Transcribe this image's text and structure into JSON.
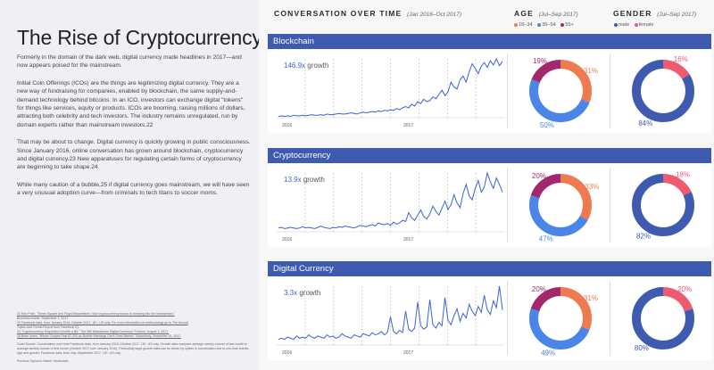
{
  "left": {
    "title": "The Rise of Cryptocurrency",
    "paragraphs": [
      "Formerly in the domain of the dark web, digital currency made headlines in 2017—and now appears poised for the mainstream.",
      "Initial Coin Offerings (ICOs) are the things are legitimizing digital currency. They are a new way of fundraising for companies, enabled by blockchain, the same supply-and-demand technology behind bitcoins. In an ICO, investors can exchange digital \"tokens\" for things like services, equity or products. ICOs are booming, raising millions of dollars, attracting both celebrity and tech investors. The industry remains unregulated, run by domain experts rather than mainstream investors.22",
      "That may be about to change. Digital currency is quickly growing in public consciousness. Since January 2016, online conversation has grown around blockchain, cryptocurrency and digital currency.23 New apparatuses for regulating certain forms of cryptocurrency are beginning to take shape.24",
      "While many caution of a bubble,25 if digital currency goes mainstream, we will have seen a very unusual adoption curve—from criminals to tech titans to soccer moms."
    ],
    "notes": [
      "22   Rob Price, \"Times Square and Floyd Mayweather: How cryptocurrency mania is creeping into the mainstream,\"",
      "Business Insider, September 1, 2017.",
      "23   Facebook data, from January 2016–October 2017, 18+, US only. For more information on methodology go to The Annual",
      "Topics and Trends Report from Facebook IQ.",
      "24   \"Cryptocurrency Regulation Unveils a Bit,\" The Will Mainstream Digital Currency? Fortune, August 1, 2017.",
      "25   Brian Iones, \"Bitcoin Surges Past $7,000 as Bubble Warnings Can't Crest Market,\" Bloomberg, November 20, 2017."
    ],
    "chart_source": "Chart Source: Conversation over time Facebook data, from January 2016–October 2017, 18+, US only. Growth rates compare average weekly volume of last month to average weekly volume of first month (October 2017 over January 2016). Particularly large growth rates can be driven by spikes in conversation due to one-time events. Age and gender: Facebook data, from July–September 2017, 18+, US only.",
    "previous": "Previous Topics to Watch: blockchain"
  },
  "headers": {
    "conversation": "CONVERSATION OVER TIME",
    "conversation_range": "(Jan 2016–Oct 2017)",
    "age": "AGE",
    "age_range": "(Jul–Sep 2017)",
    "gender": "GENDER",
    "gender_range": "(Jul–Sep 2017)"
  },
  "legend": {
    "age": [
      "18–34",
      "35–54",
      "55+"
    ],
    "gender": [
      "male",
      "female"
    ]
  },
  "colors": {
    "bar": "#3f5bb0",
    "line": "#3a63d8",
    "age_18_34": "#f07a4f",
    "age_35_54": "#4a86e8",
    "age_55_plus": "#a3286b",
    "male": "#3f5bb0",
    "female": "#ee5a6f"
  },
  "growth_word": "growth",
  "xticks": [
    "2016",
    "2017"
  ],
  "chart_data": [
    {
      "type": "line",
      "title": "Blockchain",
      "growth": "146.9x",
      "x_range": [
        "Jan 2016",
        "Oct 2017"
      ],
      "values": [
        2,
        3,
        2,
        3,
        2,
        4,
        3,
        3,
        4,
        3,
        4,
        5,
        4,
        4,
        5,
        4,
        6,
        5,
        5,
        6,
        7,
        6,
        6,
        7,
        8,
        7,
        6,
        8,
        9,
        8,
        9,
        10,
        9,
        11,
        10,
        12,
        11,
        13,
        12,
        15,
        13,
        16,
        18,
        16,
        22,
        19,
        26,
        23,
        30,
        26,
        28,
        34,
        31,
        38,
        45,
        36,
        42,
        58,
        50,
        47,
        62,
        68,
        58,
        75,
        88,
        80,
        72,
        84,
        90,
        82,
        93,
        86,
        96,
        85,
        92
      ]
    },
    {
      "type": "line",
      "title": "Cryptocurrency",
      "growth": "13.9x",
      "x_range": [
        "Jan 2016",
        "Oct 2017"
      ],
      "values": [
        6,
        7,
        5,
        6,
        7,
        6,
        5,
        6,
        8,
        6,
        7,
        6,
        5,
        7,
        9,
        7,
        6,
        5,
        7,
        6,
        8,
        7,
        9,
        8,
        7,
        6,
        8,
        10,
        9,
        8,
        10,
        11,
        9,
        14,
        12,
        11,
        13,
        10,
        15,
        12,
        14,
        18,
        16,
        30,
        22,
        18,
        26,
        34,
        24,
        20,
        28,
        40,
        32,
        26,
        37,
        48,
        35,
        42,
        58,
        45,
        38,
        60,
        74,
        56,
        50,
        68,
        80,
        62,
        70,
        92,
        78,
        68,
        84,
        74,
        62
      ]
    },
    {
      "type": "line",
      "title": "Digital Currency",
      "growth": "3.3x",
      "x_range": [
        "Jan 2016",
        "Oct 2017"
      ],
      "values": [
        5,
        6,
        5,
        7,
        6,
        5,
        8,
        6,
        7,
        6,
        9,
        7,
        6,
        8,
        7,
        6,
        9,
        7,
        8,
        6,
        7,
        10,
        8,
        7,
        6,
        9,
        8,
        7,
        10,
        9,
        8,
        11,
        9,
        10,
        12,
        9,
        11,
        25,
        12,
        10,
        13,
        11,
        30,
        14,
        12,
        15,
        38,
        17,
        14,
        16,
        40,
        18,
        15,
        20,
        17,
        42,
        22,
        18,
        26,
        32,
        21,
        28,
        24,
        36,
        30,
        26,
        34,
        29,
        44,
        31,
        27,
        39,
        33,
        52,
        31
      ]
    }
  ],
  "age_data": [
    {
      "type": "pie",
      "title": "Blockchain",
      "series": [
        {
          "name": "18–34",
          "value": 31
        },
        {
          "name": "35–54",
          "value": 50
        },
        {
          "name": "55+",
          "value": 19
        }
      ]
    },
    {
      "type": "pie",
      "title": "Cryptocurrency",
      "series": [
        {
          "name": "18–34",
          "value": 33
        },
        {
          "name": "35–54",
          "value": 47
        },
        {
          "name": "55+",
          "value": 20
        }
      ]
    },
    {
      "type": "pie",
      "title": "Digital Currency",
      "series": [
        {
          "name": "18–34",
          "value": 31
        },
        {
          "name": "35–54",
          "value": 49
        },
        {
          "name": "55+",
          "value": 20
        }
      ]
    }
  ],
  "gender_data": [
    {
      "type": "pie",
      "title": "Blockchain",
      "series": [
        {
          "name": "male",
          "value": 84
        },
        {
          "name": "female",
          "value": 16
        }
      ]
    },
    {
      "type": "pie",
      "title": "Cryptocurrency",
      "series": [
        {
          "name": "male",
          "value": 82
        },
        {
          "name": "female",
          "value": 18
        }
      ]
    },
    {
      "type": "pie",
      "title": "Digital Currency",
      "series": [
        {
          "name": "male",
          "value": 80
        },
        {
          "name": "female",
          "value": 20
        }
      ]
    }
  ]
}
